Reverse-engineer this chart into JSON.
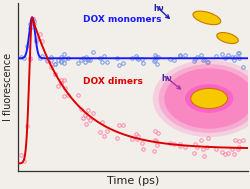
{
  "title": "",
  "xlabel": "Time (ps)",
  "ylabel": "I fluorescence",
  "background_color": "#f2eeea",
  "monomer_label": "DOX monomers",
  "dimer_label": "DOX dimers",
  "monomer_color_line": "#1a1aff",
  "monomer_color_scatter": "#7799dd",
  "dimer_color_line": "#dd0000",
  "dimer_color_scatter": "#ff88aa",
  "hv_color": "#2222aa",
  "xlim": [
    0,
    100
  ],
  "ylim": [
    -0.05,
    1.1
  ],
  "monomer_baseline": 0.72,
  "dimer_baseline": 0.1,
  "peak_time": 6.0,
  "rise_tau": 1.8,
  "dimer_decay_tau": 18.0,
  "n_scatter_points": 75
}
